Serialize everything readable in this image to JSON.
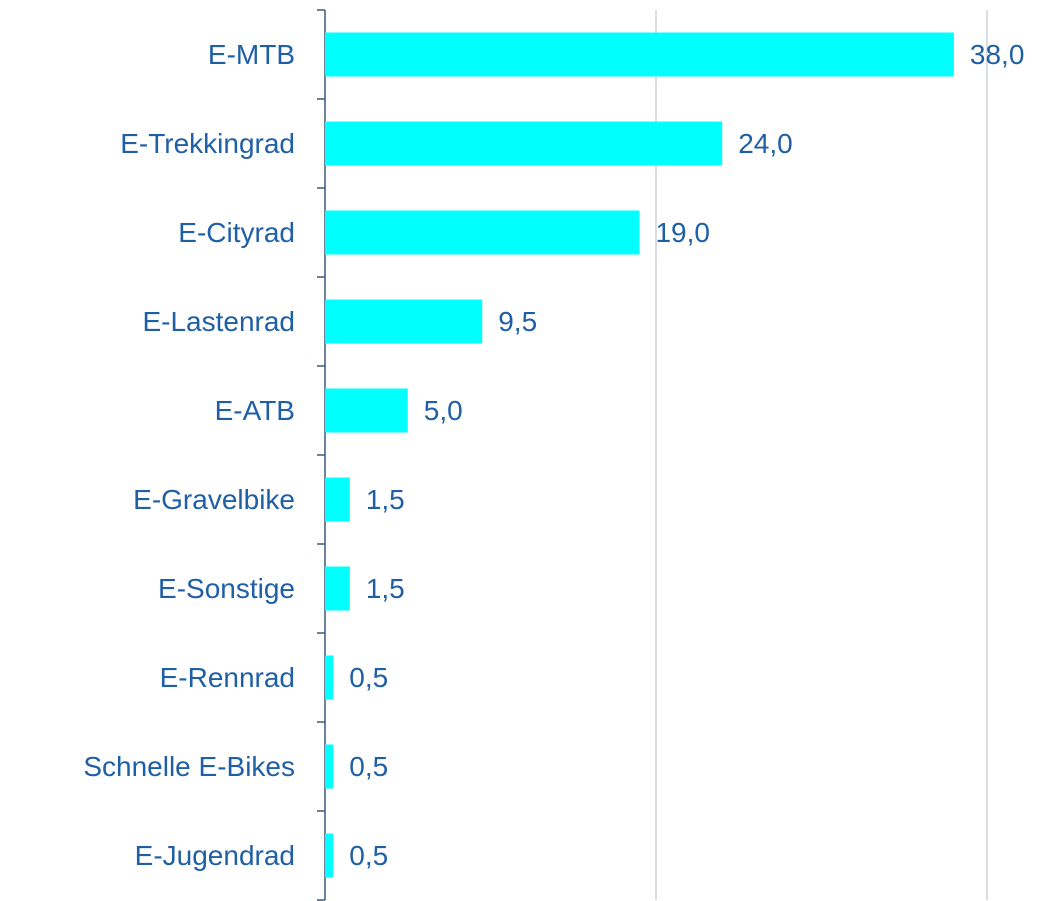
{
  "chart_data": {
    "type": "barh",
    "categories": [
      "E-MTB",
      "E-Trekkingrad",
      "E-Cityrad",
      "E-Lastenrad",
      "E-ATB",
      "E-Gravelbike",
      "E-Sonstige",
      "E-Rennrad",
      "Schnelle E-Bikes",
      "E-Jugendrad"
    ],
    "values": [
      38.0,
      24.0,
      19.0,
      9.5,
      5.0,
      1.5,
      1.5,
      0.5,
      0.5,
      0.5
    ],
    "value_labels": [
      "38,0",
      "24,0",
      "19,0",
      "9,5",
      "5,0",
      "1,5",
      "1,5",
      "0,5",
      "0,5",
      "0,5"
    ],
    "color": "#00ffff",
    "xlim": [
      0,
      40
    ],
    "xticks": [
      0,
      20,
      40
    ],
    "grid": true
  }
}
